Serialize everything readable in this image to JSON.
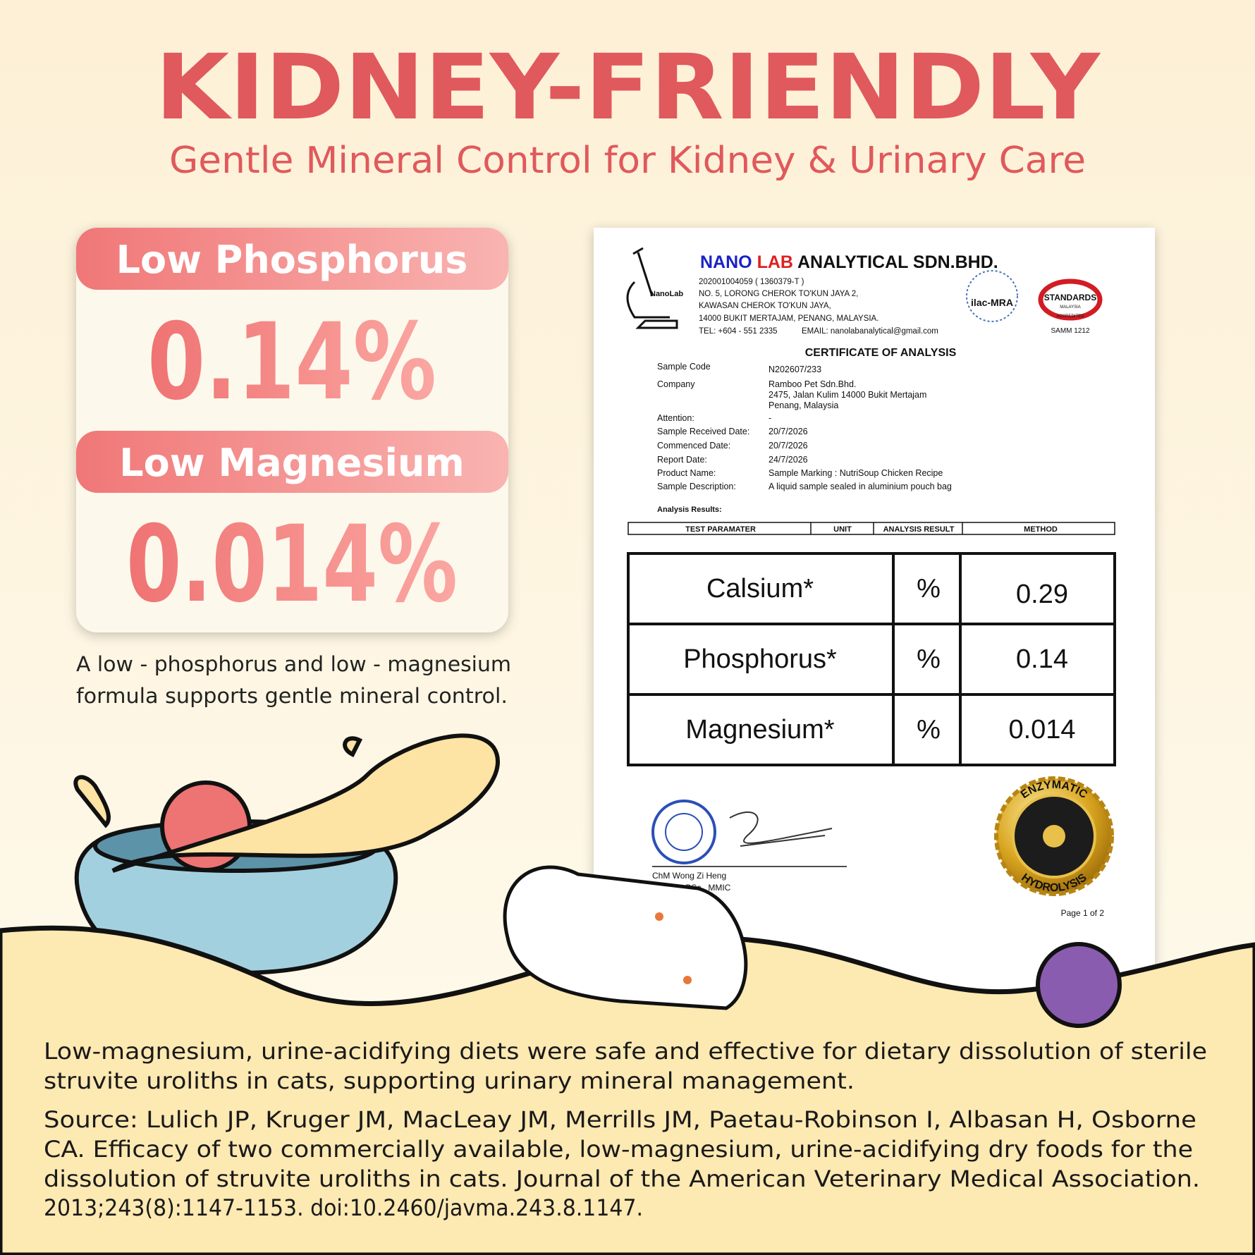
{
  "header": {
    "title": "KIDNEY-FRIENDLY",
    "subtitle": "Gentle Mineral Control for Kidney & Urinary Care"
  },
  "stats": [
    {
      "label": "Low Phosphorus",
      "value": "0.14%"
    },
    {
      "label": "Low Magnesium",
      "value": "0.014%"
    }
  ],
  "stats_note": [
    "A low - phosphorus and low - magnesium",
    "formula supports gentle mineral control."
  ],
  "certificate": {
    "logo": "NanoLab",
    "company_nano": "NANO",
    "company_lab": "LAB",
    "company_rest": "ANALYTICAL SDN.BHD.",
    "address": [
      "202001004059 ( 1360379-T )",
      "NO. 5, LORONG CHEROK TO'KUN JAYA 2,",
      "KAWASAN CHEROK TO'KUN JAYA,",
      "14000 BUKIT MERTAJAM, PENANG, MALAYSIA."
    ],
    "tel": "TEL: +604 - 551 2335",
    "email": "EMAIL: nanolabanalytical@gmail.com",
    "badge_ilac": "ilac-MRA",
    "badge_standards": "STANDARDS",
    "badge_country": "MALAYSIA",
    "badge_accredited": "ACCREDITED",
    "badge_samm": "SAMM 1212",
    "title": "CERTIFICATE OF ANALYSIS",
    "fields": [
      {
        "label": "Sample Code",
        "value": [
          "N202607/233"
        ]
      },
      {
        "label": "Company",
        "value": [
          "Ramboo Pet Sdn.Bhd.",
          "2475, Jalan Kulim 14000 Bukit Mertajam",
          "Penang, Malaysia"
        ]
      },
      {
        "label": "Attention:",
        "value": [
          "-"
        ]
      },
      {
        "label": "Sample Received Date:",
        "value": [
          "20/7/2026"
        ]
      },
      {
        "label": "Commenced Date:",
        "value": [
          "20/7/2026"
        ]
      },
      {
        "label": "Report Date:",
        "value": [
          "24/7/2026"
        ]
      },
      {
        "label": "Product Name:",
        "value": [
          "Sample Marking : NutriSoup Chicken Recipe"
        ]
      },
      {
        "label": "Sample Description:",
        "value": [
          "A liquid sample sealed in aluminium pouch bag"
        ]
      }
    ],
    "results_label": "Analysis Results:",
    "table_headers": [
      "TEST PARAMATER",
      "UNIT",
      "ANALYSIS RESULT",
      "METHOD"
    ],
    "table_rows": [
      [
        "Calsium*",
        "%",
        "0.29"
      ],
      [
        "Phosphorus*",
        "%",
        "0.14"
      ],
      [
        "Magnesium*",
        "%",
        "0.014"
      ]
    ],
    "signer": [
      "ChM Wong Zi Heng",
      "Chemist BSc., MMIC"
    ],
    "page": "Page 1 of 2",
    "seal_top": "ENZYMATIC",
    "seal_bottom": "HYDROLYSIS"
  },
  "footer": {
    "study": [
      "Low-magnesium, urine-acidifying diets were safe and effective for dietary dissolution of sterile",
      "struvite uroliths in cats, supporting urinary mineral management."
    ],
    "source": [
      "Source: Lulich JP, Kruger JM, MacLeay JM, Merrills JM, Paetau-Robinson I, Albasan H, Osborne",
      "CA. Efficacy of two commercially available, low-magnesium, urine-acidifying dry foods for the",
      "dissolution of struvite uroliths in cats. Journal of the American Veterinary Medical Association.",
      "2013;243(8):1147-1153. doi:10.2460/javma.243.8.1147."
    ]
  }
}
